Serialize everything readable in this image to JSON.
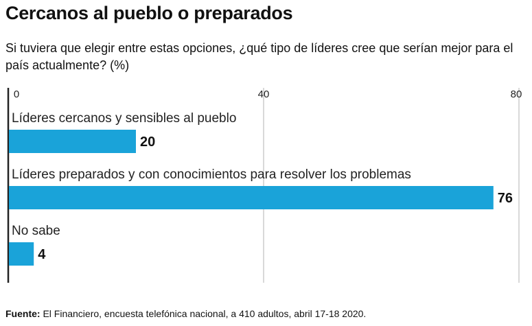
{
  "title": "Cercanos al pueblo o preparados",
  "subtitle": "Si tuviera que elegir entre estas opciones, ¿qué tipo de líderes cree que serían mejor para el país actualmente? (%)",
  "source": {
    "label": "Fuente:",
    "text": " El Financiero, encuesta telefónica nacional, a 410 adultos, abril 17-18 2020."
  },
  "colors": {
    "bar": "#1aa3d9",
    "grid": "#b3b3b3",
    "axis": "#222222"
  },
  "chart_data": {
    "type": "bar",
    "orientation": "horizontal",
    "categories": [
      "Líderes cercanos y sensibles al pueblo",
      "Líderes preparados y con conocimientos para resolver los problemas",
      "No sabe"
    ],
    "values": [
      20,
      76,
      4
    ],
    "xlim": [
      0,
      80
    ],
    "ticks": [
      0,
      40,
      80
    ],
    "tick_labels": [
      "0",
      "40",
      "80"
    ],
    "grid": true,
    "legend": "none"
  }
}
